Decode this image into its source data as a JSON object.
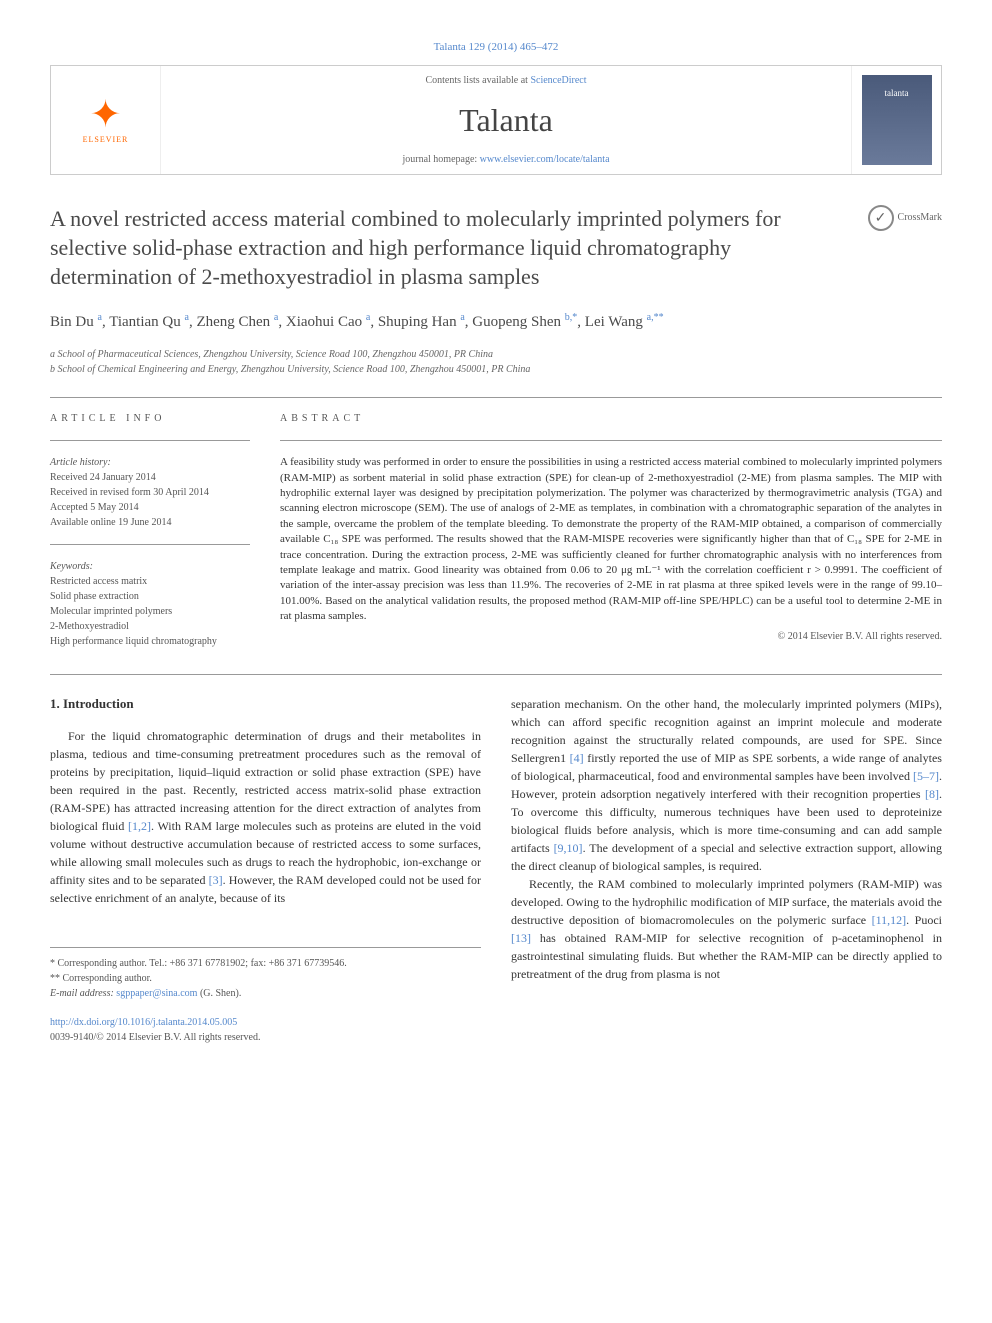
{
  "page": {
    "header_citation": "Talanta 129 (2014) 465–472",
    "background_color": "#ffffff",
    "link_color": "#5588cc",
    "text_color": "#333333"
  },
  "banner": {
    "publisher": "ELSEVIER",
    "publisher_logo_color": "#ff6600",
    "contents_prefix": "Contents lists available at ",
    "contents_link": "ScienceDirect",
    "journal": "Talanta",
    "homepage_prefix": "journal homepage: ",
    "homepage_url": "www.elsevier.com/locate/talanta",
    "cover_label": "talanta"
  },
  "article": {
    "title": "A novel restricted access material combined to molecularly imprinted polymers for selective solid-phase extraction and high performance liquid chromatography determination of 2-methoxyestradiol in plasma samples",
    "crossmark": "CrossMark",
    "authors_html": "Bin Du <sup>a</sup>, Tiantian Qu <sup>a</sup>, Zheng Chen <sup>a</sup>, Xiaohui Cao <sup>a</sup>, Shuping Han <sup>a</sup>, Guopeng Shen <sup>b,*</sup>, Lei Wang <sup>a,**</sup>",
    "affiliations": [
      "a School of Pharmaceutical Sciences, Zhengzhou University, Science Road 100, Zhengzhou 450001, PR China",
      "b School of Chemical Engineering and Energy, Zhengzhou University, Science Road 100, Zhengzhou 450001, PR China"
    ]
  },
  "info": {
    "label": "ARTICLE INFO",
    "history_label": "Article history:",
    "history": [
      "Received 24 January 2014",
      "Received in revised form 30 April 2014",
      "Accepted 5 May 2014",
      "Available online 19 June 2014"
    ],
    "keywords_label": "Keywords:",
    "keywords": [
      "Restricted access matrix",
      "Solid phase extraction",
      "Molecular imprinted polymers",
      "2-Methoxyestradiol",
      "High performance liquid chromatography"
    ]
  },
  "abstract": {
    "label": "ABSTRACT",
    "text": "A feasibility study was performed in order to ensure the possibilities in using a restricted access material combined to molecularly imprinted polymers (RAM-MIP) as sorbent material in solid phase extraction (SPE) for clean-up of 2-methoxyestradiol (2-ME) from plasma samples. The MIP with hydrophilic external layer was designed by precipitation polymerization. The polymer was characterized by thermogravimetric analysis (TGA) and scanning electron microscope (SEM). The use of analogs of 2-ME as templates, in combination with a chromatographic separation of the analytes in the sample, overcame the problem of the template bleeding. To demonstrate the property of the RAM-MIP obtained, a comparison of commercially available C₁₈ SPE was performed. The results showed that the RAM-MISPE recoveries were significantly higher than that of C₁₈ SPE for 2-ME in trace concentration. During the extraction process, 2-ME was sufficiently cleaned for further chromatographic analysis with no interferences from template leakage and matrix. Good linearity was obtained from 0.06 to 20 μg mL⁻¹ with the correlation coefficient r > 0.9991. The coefficient of variation of the inter-assay precision was less than 11.9%. The recoveries of 2-ME in rat plasma at three spiked levels were in the range of 99.10–101.00%. Based on the analytical validation results, the proposed method (RAM-MIP off-line SPE/HPLC) can be a useful tool to determine 2-ME in rat plasma samples.",
    "copyright": "© 2014 Elsevier B.V. All rights reserved."
  },
  "body": {
    "section_number": "1.",
    "section_title": "Introduction",
    "left_para1": "For the liquid chromatographic determination of drugs and their metabolites in plasma, tedious and time-consuming pretreatment procedures such as the removal of proteins by precipitation, liquid–liquid extraction or solid phase extraction (SPE) have been required in the past. Recently, restricted access matrix-solid phase extraction (RAM-SPE) has attracted increasing attention for the direct extraction of analytes from biological fluid ",
    "ref12": "[1,2]",
    "left_para1b": ". With RAM large molecules such as proteins are eluted in the void volume without destructive accumulation because of restricted access to some surfaces, while allowing small molecules such as drugs to reach the hydrophobic, ion-exchange or affinity sites and to be separated ",
    "ref3": "[3]",
    "left_para1c": ". However, the RAM developed could not be used for selective enrichment of an analyte, because of its",
    "right_para1a": "separation mechanism. On the other hand, the molecularly imprinted polymers (MIPs), which can afford specific recognition against an imprint molecule and moderate recognition against the structurally related compounds, are used for SPE. Since Sellergren1 ",
    "ref4": "[4]",
    "right_para1b": " firstly reported the use of MIP as SPE sorbents, a wide range of analytes of biological, pharmaceutical, food and environmental samples have been involved ",
    "ref57": "[5–7]",
    "right_para1c": ". However, protein adsorption negatively interfered with their recognition properties ",
    "ref8": "[8]",
    "right_para1d": ". To overcome this difficulty, numerous techniques have been used to deproteinize biological fluids before analysis, which is more time-consuming and can add sample artifacts ",
    "ref910": "[9,10]",
    "right_para1e": ". The development of a special and selective extraction support, allowing the direct cleanup of biological samples, is required.",
    "right_para2a": "Recently, the RAM combined to molecularly imprinted polymers (RAM-MIP) was developed. Owing to the hydrophilic modification of MIP surface, the materials avoid the destructive deposition of biomacromolecules on the polymeric surface ",
    "ref1112": "[11,12]",
    "right_para2b": ". Puoci ",
    "ref13": "[13]",
    "right_para2c": " has obtained RAM-MIP for selective recognition of p-acetaminophenol in gastrointestinal simulating fluids. But whether the RAM-MIP can be directly applied to pretreatment of the drug from plasma is not"
  },
  "footnotes": {
    "corr1": "* Corresponding author. Tel.: +86 371 67781902; fax: +86 371 67739546.",
    "corr2": "** Corresponding author.",
    "email_label": "E-mail address: ",
    "email": "sgppaper@sina.com",
    "email_suffix": " (G. Shen).",
    "doi_url": "http://dx.doi.org/10.1016/j.talanta.2014.05.005",
    "issn_line": "0039-9140/© 2014 Elsevier B.V. All rights reserved."
  }
}
